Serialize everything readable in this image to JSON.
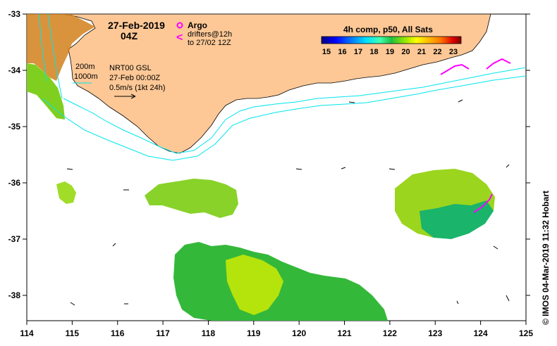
{
  "title": {
    "date": "27-Feb-2019",
    "time": "04Z"
  },
  "legend": {
    "argo_label": "Argo",
    "drifters_label": "drifters@12h",
    "drifters_sub": "to 27/02 12Z",
    "argo_color": "#ff00ff",
    "drifter_color": "#ff00ff"
  },
  "depth_contours": {
    "c200": "200m",
    "c1000": "1000m",
    "color": "#00e5ee"
  },
  "info": {
    "line1": "NRT00 GSL",
    "line2": "27-Feb 00:00Z",
    "line3": "0.5m/s (1kt 24h)"
  },
  "colorbar": {
    "title": "4h comp, p50, All Sats",
    "ticks": [
      "15",
      "16",
      "17",
      "18",
      "19",
      "20",
      "21",
      "22",
      "23"
    ],
    "colors": [
      "#00007f",
      "#0000ff",
      "#007fff",
      "#00e0ff",
      "#40ffb0",
      "#20c040",
      "#9be800",
      "#ffff00",
      "#ffc000",
      "#ff7000",
      "#e00000",
      "#800000"
    ]
  },
  "credit": "© IMOS 04-Mar-2019 11:32 Hobart",
  "land_color": "#fdc896",
  "axes": {
    "x_ticks": [
      "114",
      "115",
      "116",
      "117",
      "118",
      "119",
      "120",
      "121",
      "122",
      "123",
      "124",
      "125"
    ],
    "y_ticks": [
      "-33",
      "-34",
      "-35",
      "-36",
      "-37",
      "-38"
    ]
  }
}
